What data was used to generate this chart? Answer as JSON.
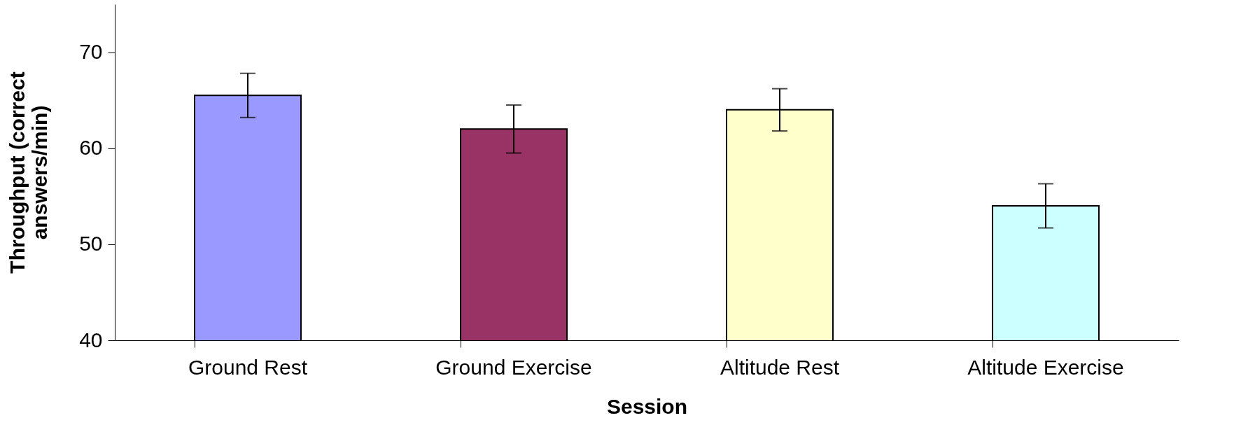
{
  "chart_data": {
    "type": "bar",
    "xlabel": "Session",
    "ylabel": "Throughput (correct answers/min)",
    "categories": [
      "Ground Rest",
      "Ground Exercise",
      "Altitude Rest",
      "Altitude Exercise"
    ],
    "values": [
      65.5,
      62.0,
      64.0,
      54.0
    ],
    "errors": [
      2.3,
      2.5,
      2.2,
      2.3
    ],
    "colors": [
      "#9999ff",
      "#993366",
      "#ffffcc",
      "#ccffff"
    ],
    "ylim": [
      40,
      75
    ],
    "yticks": [
      40,
      50,
      60,
      70
    ],
    "grid": false
  }
}
